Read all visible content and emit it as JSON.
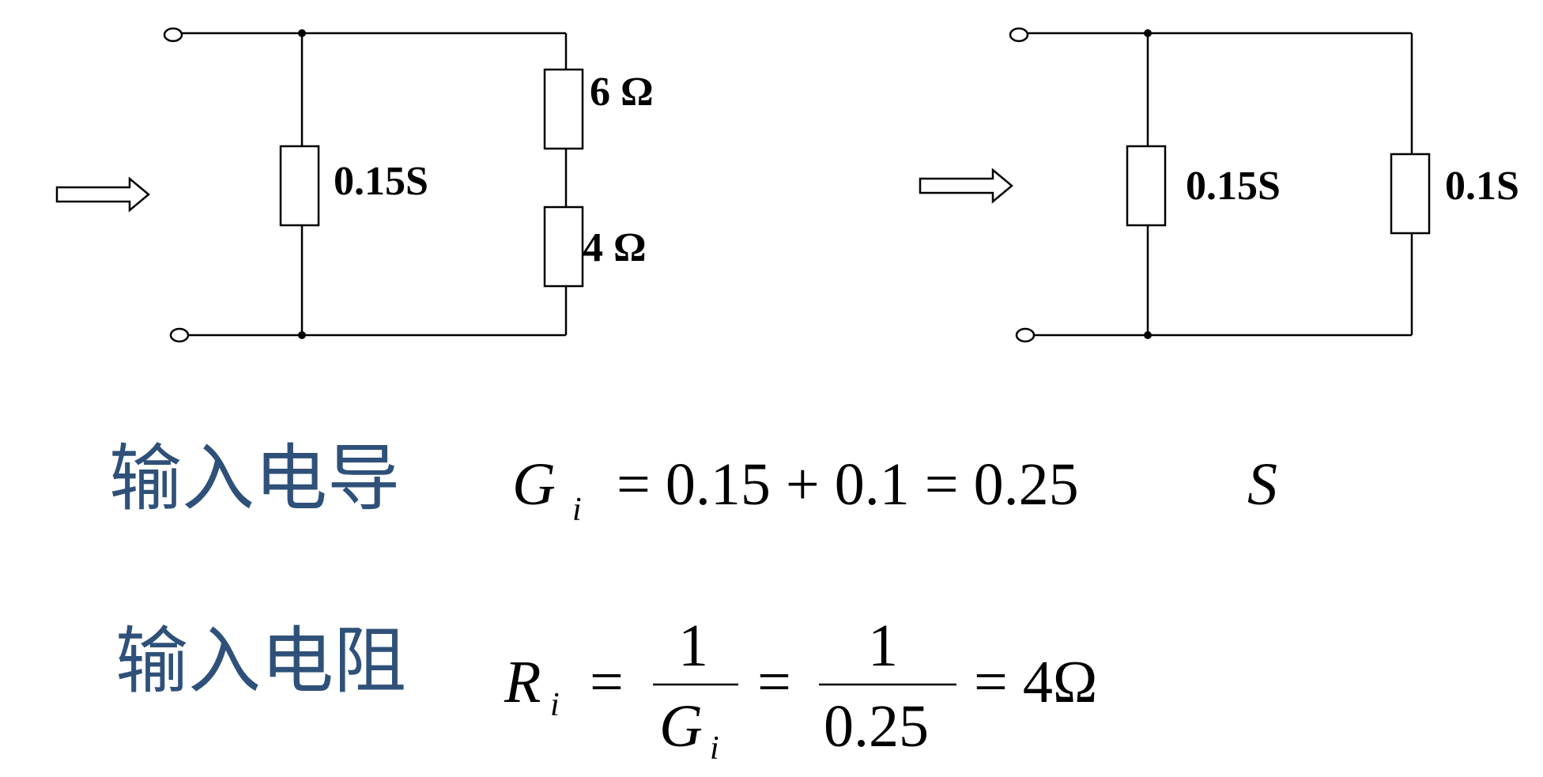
{
  "circuit_left": {
    "conductance_label": "0.15S",
    "resistor_top_label": "6 Ω",
    "resistor_bottom_label": "4 Ω"
  },
  "circuit_right": {
    "conductance1_label": "0.15S",
    "conductance2_label": "0.1S"
  },
  "equations": {
    "conductance_title": "输入电导",
    "conductance_symbol": "G",
    "conductance_sub": "i",
    "conductance_expr": "= 0.15 + 0.1 = 0.25",
    "conductance_unit": "S",
    "resistance_title": "输入电阻",
    "resistance_symbol": "R",
    "resistance_sub": "i",
    "eq_sign": "=",
    "frac1_num": "1",
    "frac1_den_symbol": "G",
    "frac1_den_sub": "i",
    "frac2_num": "1",
    "frac2_den": "0.25",
    "resistance_result": "= 4Ω"
  }
}
